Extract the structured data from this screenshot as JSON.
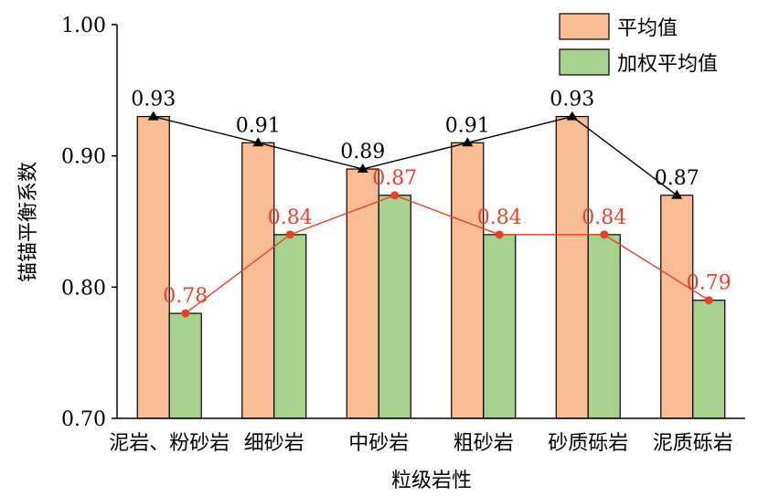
{
  "chart_data": {
    "type": "bar",
    "xlabel": "粒级岩性",
    "ylabel": "锚锚平衡系数",
    "ylim": [
      0.7,
      1.0
    ],
    "yticks": [
      "0.70",
      "0.80",
      "0.90",
      "1.00"
    ],
    "categories": [
      "泥岩、粉砂岩",
      "细砂岩",
      "中砂岩",
      "粗砂岩",
      "砂质砾岩",
      "泥质砾岩"
    ],
    "series": [
      {
        "name": "平均值",
        "values": [
          0.93,
          0.91,
          0.89,
          0.91,
          0.93,
          0.87
        ],
        "labels": [
          "0.93",
          "0.91",
          "0.89",
          "0.91",
          "0.93",
          "0.87"
        ],
        "bar_color": "#F9BD95",
        "line_color": "#000000",
        "label_color": "#000000",
        "marker": "triangle"
      },
      {
        "name": "加权平均值",
        "values": [
          0.78,
          0.84,
          0.87,
          0.84,
          0.84,
          0.79
        ],
        "labels": [
          "0.78",
          "0.84",
          "0.87",
          "0.84",
          "0.84",
          "0.79"
        ],
        "bar_color": "#A9D18E",
        "line_color": "#E8412B",
        "label_color": "#E8412B",
        "marker": "circle"
      }
    ],
    "legend_position": "top-right",
    "grid": false
  }
}
